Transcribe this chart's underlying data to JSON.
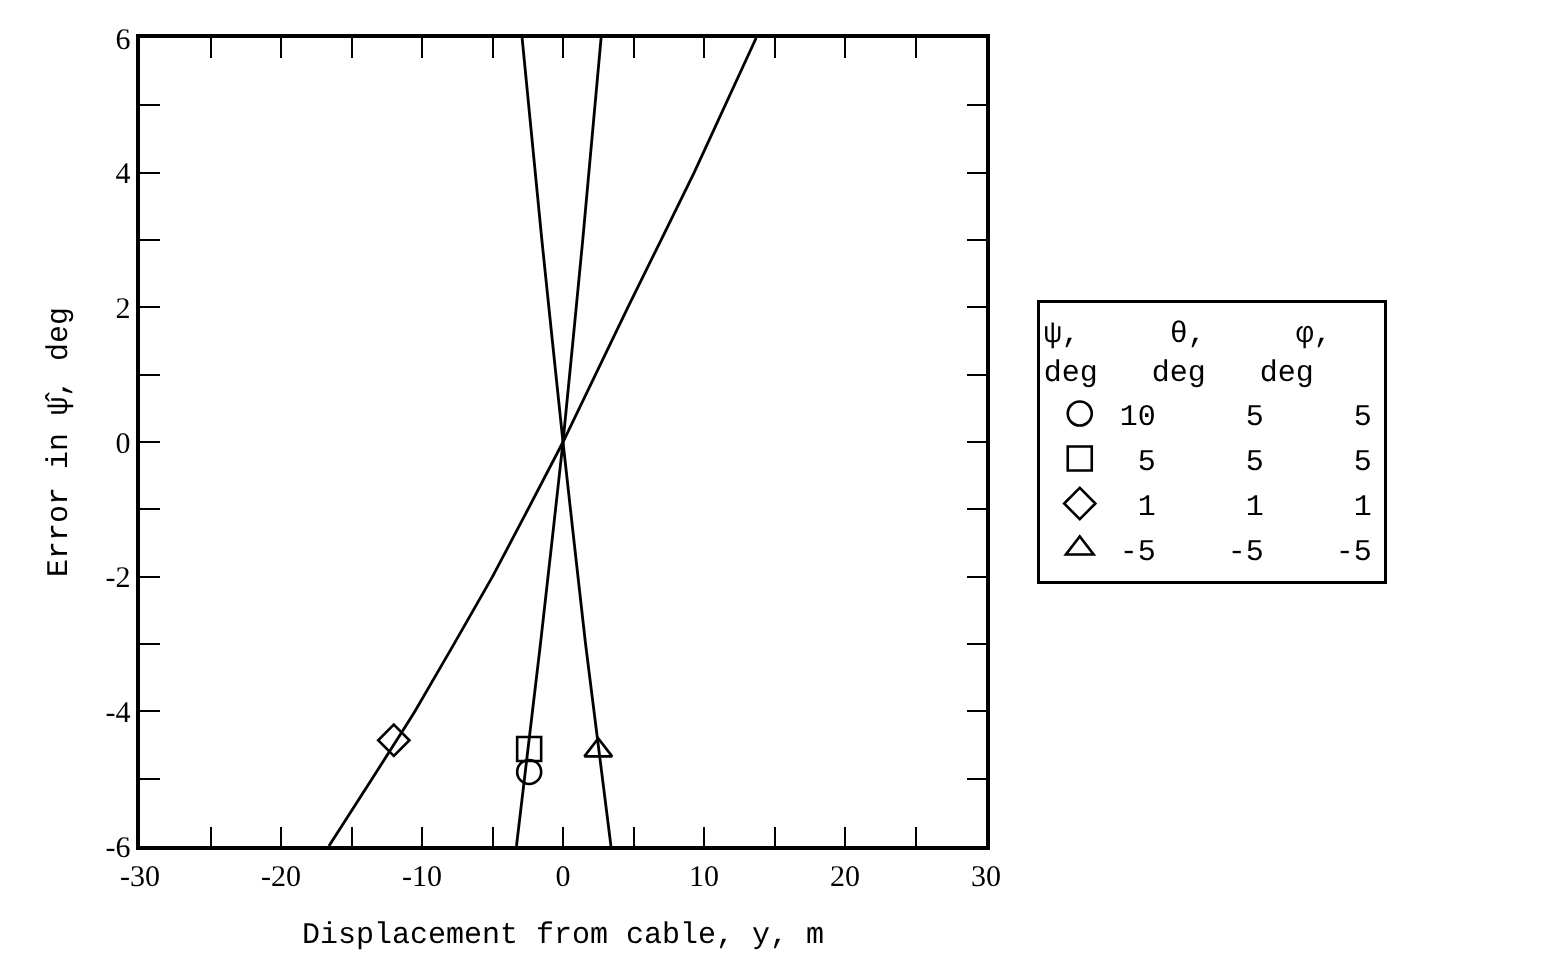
{
  "chart_data": {
    "type": "line",
    "xlabel": "Displacement from cable, y, m",
    "ylabel": "Error in ψ̂, deg",
    "legend_title": "ψ,     θ,     φ,\ndeg   deg   deg",
    "xlim": [
      -30,
      30
    ],
    "ylim": [
      -6,
      6
    ],
    "xticks": [
      -30,
      {
        "value": -25,
        "label": null
      },
      -20,
      {
        "value": -15,
        "label": null
      },
      -10,
      {
        "value": -5,
        "label": null
      },
      0,
      {
        "value": 5,
        "label": null
      },
      10,
      {
        "value": 15,
        "label": null
      },
      20,
      {
        "value": 25,
        "label": null
      },
      30
    ],
    "yticks": [
      -6,
      {
        "value": -5,
        "label": null
      },
      -4,
      {
        "value": -3,
        "label": null
      },
      -2,
      {
        "value": -1,
        "label": null
      },
      0,
      {
        "value": 1,
        "label": null
      },
      2,
      {
        "value": 3,
        "label": null
      },
      4,
      {
        "value": 5,
        "label": null
      },
      6
    ],
    "legend": "right",
    "line_style": "solid",
    "series": [
      {
        "color": "#000000",
        "x": [
          -3.3,
          -1.6,
          0,
          1.4,
          2.7
        ],
        "values": [
          -6,
          -3,
          0,
          3,
          6
        ]
      },
      {
        "color": "#000000",
        "x": [
          -16.6,
          -10.5,
          -5.0,
          0,
          4.6,
          9.3,
          13.7
        ],
        "values": [
          -6,
          -4,
          -2,
          0,
          2,
          4,
          6
        ]
      },
      {
        "color": "#000000",
        "x": [
          3.4,
          1.6,
          0,
          -1.5,
          -2.9
        ],
        "values": [
          -6,
          -3,
          0,
          3,
          6
        ]
      },
      {
        "type": "scatter",
        "name": "10     5     5",
        "marker": "circle",
        "color": "#000000",
        "x": [
          -2.4
        ],
        "values": [
          -4.9
        ]
      },
      {
        "type": "scatter",
        "name": " 5     5     5",
        "marker": "square",
        "color": "#000000",
        "x": [
          -2.4
        ],
        "values": [
          -4.56
        ]
      },
      {
        "type": "scatter",
        "name": " 1     1     1",
        "marker": "diamond",
        "color": "#000000",
        "x": [
          -12.0
        ],
        "values": [
          -4.43
        ]
      },
      {
        "type": "scatter",
        "name": "-5    -5    -5",
        "marker": "triangle",
        "color": "#000000",
        "x": [
          2.5
        ],
        "values": [
          -4.58
        ]
      }
    ]
  }
}
